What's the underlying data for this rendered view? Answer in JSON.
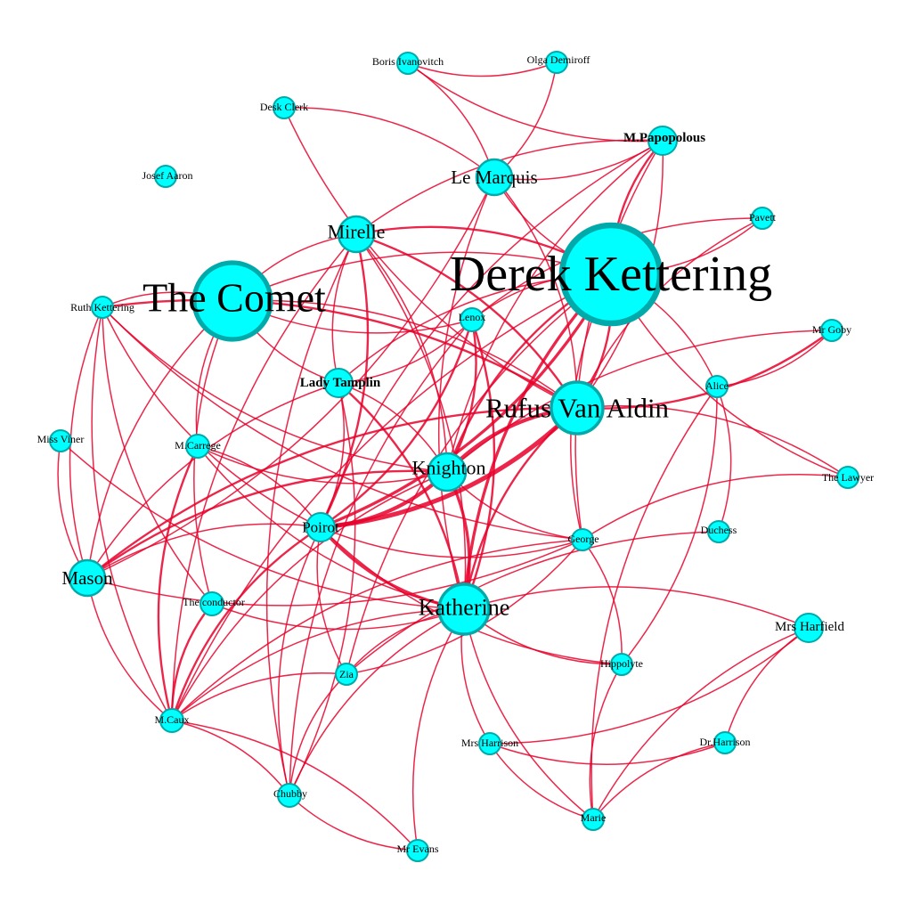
{
  "colors": {
    "node_fill": "#00ffff",
    "node_stroke": "#00aaaa",
    "edge": "#e8002a",
    "background": "#ffffff"
  },
  "nodes": [
    {
      "id": "derek",
      "label": "Derek Kettering",
      "weight": 10
    },
    {
      "id": "comet",
      "label": "The Comet",
      "weight": 8
    },
    {
      "id": "rufus",
      "label": "Rufus Van Aldin",
      "weight": 5
    },
    {
      "id": "katherine",
      "label": "Katherine",
      "weight": 4
    },
    {
      "id": "knighton",
      "label": "Knighton",
      "weight": 3
    },
    {
      "id": "mirelle",
      "label": "Mirelle",
      "weight": 3
    },
    {
      "id": "lemarquis",
      "label": "Le Marquis",
      "weight": 3
    },
    {
      "id": "mason",
      "label": "Mason",
      "weight": 3
    },
    {
      "id": "poirot",
      "label": "Poirot",
      "weight": 2
    },
    {
      "id": "tamplin",
      "label": "Lady Tamplin",
      "weight": 2
    },
    {
      "id": "papopolous",
      "label": "M.Papopolous",
      "weight": 2
    },
    {
      "id": "harfield",
      "label": "Mrs Harfield",
      "weight": 2
    },
    {
      "id": "lenox",
      "label": "Lenox",
      "weight": 1
    },
    {
      "id": "ruth",
      "label": "Ruth Kettering",
      "weight": 1
    },
    {
      "id": "carrege",
      "label": "M.Carrege",
      "weight": 1
    },
    {
      "id": "conductor",
      "label": "The conductor",
      "weight": 1
    },
    {
      "id": "caux",
      "label": "M.Caux",
      "weight": 1
    },
    {
      "id": "zia",
      "label": "Zia",
      "weight": 1
    },
    {
      "id": "chubby",
      "label": "Chubby",
      "weight": 1
    },
    {
      "id": "evans",
      "label": "Mr Evans",
      "weight": 1
    },
    {
      "id": "mrsharrison",
      "label": "Mrs Harrison",
      "weight": 1
    },
    {
      "id": "marie",
      "label": "Marie",
      "weight": 1
    },
    {
      "id": "drharrison",
      "label": "Dr.Harrison",
      "weight": 1
    },
    {
      "id": "hippolyte",
      "label": "Hippolyte",
      "weight": 1
    },
    {
      "id": "george",
      "label": "George",
      "weight": 1
    },
    {
      "id": "duchess",
      "label": "Duchess",
      "weight": 1
    },
    {
      "id": "lawyer",
      "label": "The Lawyer",
      "weight": 1
    },
    {
      "id": "alice",
      "label": "Alice",
      "weight": 1
    },
    {
      "id": "goby",
      "label": "Mr Goby",
      "weight": 1
    },
    {
      "id": "pavett",
      "label": "Pavett",
      "weight": 1
    },
    {
      "id": "boris",
      "label": "Boris Ivanovitch",
      "weight": 1
    },
    {
      "id": "olga",
      "label": "Olga Demiroff",
      "weight": 1
    },
    {
      "id": "deskclerk",
      "label": "Desk Clerk",
      "weight": 1
    },
    {
      "id": "josef",
      "label": "Josef Aaron",
      "weight": 1
    },
    {
      "id": "missviner",
      "label": "Miss Viner",
      "weight": 1
    }
  ],
  "edges": [
    {
      "source": "poirot",
      "target": "rufus",
      "weight": 5
    },
    {
      "source": "poirot",
      "target": "knighton",
      "weight": 4
    },
    {
      "source": "poirot",
      "target": "derek",
      "weight": 3
    },
    {
      "source": "poirot",
      "target": "katherine",
      "weight": 3
    },
    {
      "source": "poirot",
      "target": "mirelle",
      "weight": 2
    },
    {
      "source": "poirot",
      "target": "lenox",
      "weight": 2
    },
    {
      "source": "poirot",
      "target": "tamplin",
      "weight": 1
    },
    {
      "source": "poirot",
      "target": "mason",
      "weight": 1
    },
    {
      "source": "poirot",
      "target": "caux",
      "weight": 2
    },
    {
      "source": "poirot",
      "target": "carrege",
      "weight": 1
    },
    {
      "source": "poirot",
      "target": "george",
      "weight": 1
    },
    {
      "source": "poirot",
      "target": "chubby",
      "weight": 1
    },
    {
      "source": "poirot",
      "target": "zia",
      "weight": 1
    },
    {
      "source": "poirot",
      "target": "hippolyte",
      "weight": 1
    },
    {
      "source": "rufus",
      "target": "knighton",
      "weight": 4
    },
    {
      "source": "rufus",
      "target": "derek",
      "weight": 2
    },
    {
      "source": "rufus",
      "target": "katherine",
      "weight": 2
    },
    {
      "source": "rufus",
      "target": "mirelle",
      "weight": 2
    },
    {
      "source": "rufus",
      "target": "mason",
      "weight": 2
    },
    {
      "source": "rufus",
      "target": "ruth",
      "weight": 2
    },
    {
      "source": "rufus",
      "target": "comet",
      "weight": 1
    },
    {
      "source": "rufus",
      "target": "goby",
      "weight": 2
    },
    {
      "source": "rufus",
      "target": "papopolous",
      "weight": 1
    },
    {
      "source": "rufus",
      "target": "lemarquis",
      "weight": 1
    },
    {
      "source": "derek",
      "target": "katherine",
      "weight": 3
    },
    {
      "source": "derek",
      "target": "mirelle",
      "weight": 2
    },
    {
      "source": "derek",
      "target": "lenox",
      "weight": 1
    },
    {
      "source": "derek",
      "target": "comet",
      "weight": 1
    },
    {
      "source": "derek",
      "target": "tamplin",
      "weight": 1
    },
    {
      "source": "derek",
      "target": "knighton",
      "weight": 2
    },
    {
      "source": "derek",
      "target": "pavett",
      "weight": 1
    },
    {
      "source": "derek",
      "target": "lawyer",
      "weight": 1
    },
    {
      "source": "derek",
      "target": "george",
      "weight": 1
    },
    {
      "source": "derek",
      "target": "zia",
      "weight": 1
    },
    {
      "source": "derek",
      "target": "caux",
      "weight": 1
    },
    {
      "source": "katherine",
      "target": "knighton",
      "weight": 3
    },
    {
      "source": "katherine",
      "target": "tamplin",
      "weight": 2
    },
    {
      "source": "katherine",
      "target": "lenox",
      "weight": 2
    },
    {
      "source": "katherine",
      "target": "mirelle",
      "weight": 1
    },
    {
      "source": "katherine",
      "target": "zia",
      "weight": 1
    },
    {
      "source": "katherine",
      "target": "mrsharrison",
      "weight": 1
    },
    {
      "source": "katherine",
      "target": "marie",
      "weight": 1
    },
    {
      "source": "katherine",
      "target": "hippolyte",
      "weight": 1
    },
    {
      "source": "katherine",
      "target": "evans",
      "weight": 1
    },
    {
      "source": "katherine",
      "target": "caux",
      "weight": 1
    },
    {
      "source": "katherine",
      "target": "chubby",
      "weight": 1
    },
    {
      "source": "knighton",
      "target": "lenox",
      "weight": 2
    },
    {
      "source": "knighton",
      "target": "mirelle",
      "weight": 1
    },
    {
      "source": "knighton",
      "target": "tamplin",
      "weight": 1
    },
    {
      "source": "knighton",
      "target": "mason",
      "weight": 2
    },
    {
      "source": "knighton",
      "target": "caux",
      "weight": 1
    },
    {
      "source": "knighton",
      "target": "george",
      "weight": 1
    },
    {
      "source": "mirelle",
      "target": "comet",
      "weight": 1
    },
    {
      "source": "mirelle",
      "target": "tamplin",
      "weight": 1
    },
    {
      "source": "mirelle",
      "target": "caux",
      "weight": 1
    },
    {
      "source": "mirelle",
      "target": "chubby",
      "weight": 1
    },
    {
      "source": "comet",
      "target": "ruth",
      "weight": 1
    },
    {
      "source": "comet",
      "target": "mason",
      "weight": 1
    },
    {
      "source": "comet",
      "target": "carrege",
      "weight": 1
    },
    {
      "source": "comet",
      "target": "conductor",
      "weight": 1
    },
    {
      "source": "comet",
      "target": "tamplin",
      "weight": 1
    },
    {
      "source": "comet",
      "target": "lenox",
      "weight": 1
    },
    {
      "source": "ruth",
      "target": "mason",
      "weight": 1
    },
    {
      "source": "ruth",
      "target": "knighton",
      "weight": 1
    },
    {
      "source": "ruth",
      "target": "caux",
      "weight": 1
    },
    {
      "source": "ruth",
      "target": "poirot",
      "weight": 1
    },
    {
      "source": "ruth",
      "target": "conductor",
      "weight": 1
    },
    {
      "source": "ruth",
      "target": "george",
      "weight": 1
    },
    {
      "source": "carrege",
      "target": "caux",
      "weight": 2
    },
    {
      "source": "carrege",
      "target": "katherine",
      "weight": 1
    },
    {
      "source": "carrege",
      "target": "knighton",
      "weight": 1
    },
    {
      "source": "conductor",
      "target": "caux",
      "weight": 2
    },
    {
      "source": "conductor",
      "target": "katherine",
      "weight": 1
    },
    {
      "source": "mason",
      "target": "caux",
      "weight": 1
    },
    {
      "source": "mason",
      "target": "george",
      "weight": 1
    },
    {
      "source": "mason",
      "target": "lemarquis",
      "weight": 1
    },
    {
      "source": "zia",
      "target": "chubby",
      "weight": 1
    },
    {
      "source": "zia",
      "target": "caux",
      "weight": 1
    },
    {
      "source": "zia",
      "target": "george",
      "weight": 1
    },
    {
      "source": "chubby",
      "target": "evans",
      "weight": 1
    },
    {
      "source": "chubby",
      "target": "tamplin",
      "weight": 1
    },
    {
      "source": "chubby",
      "target": "caux",
      "weight": 1
    },
    {
      "source": "evans",
      "target": "caux",
      "weight": 1
    },
    {
      "source": "mrsharrison",
      "target": "drharrison",
      "weight": 1
    },
    {
      "source": "mrsharrison",
      "target": "marie",
      "weight": 1
    },
    {
      "source": "mrsharrison",
      "target": "harfield",
      "weight": 1
    },
    {
      "source": "harfield",
      "target": "marie",
      "weight": 1
    },
    {
      "source": "harfield",
      "target": "drharrison",
      "weight": 1
    },
    {
      "source": "harfield",
      "target": "katherine",
      "weight": 1
    },
    {
      "source": "hippolyte",
      "target": "marie",
      "weight": 1
    },
    {
      "source": "hippolyte",
      "target": "alice",
      "weight": 1
    },
    {
      "source": "hippolyte",
      "target": "george",
      "weight": 1
    },
    {
      "source": "duchess",
      "target": "zia",
      "weight": 1
    },
    {
      "source": "duchess",
      "target": "alice",
      "weight": 1
    },
    {
      "source": "alice",
      "target": "derek",
      "weight": 1
    },
    {
      "source": "alice",
      "target": "marie",
      "weight": 1
    },
    {
      "source": "alice",
      "target": "goby",
      "weight": 1
    },
    {
      "source": "lawyer",
      "target": "george",
      "weight": 1
    },
    {
      "source": "lawyer",
      "target": "rufus",
      "weight": 1
    },
    {
      "source": "goby",
      "target": "knighton",
      "weight": 1
    },
    {
      "source": "pavett",
      "target": "lenox",
      "weight": 1
    },
    {
      "source": "pavett",
      "target": "rufus",
      "weight": 1
    },
    {
      "source": "lemarquis",
      "target": "derek",
      "weight": 1
    },
    {
      "source": "lemarquis",
      "target": "boris",
      "weight": 1
    },
    {
      "source": "lemarquis",
      "target": "olga",
      "weight": 1
    },
    {
      "source": "lemarquis",
      "target": "papopolous",
      "weight": 1
    },
    {
      "source": "lemarquis",
      "target": "katherine",
      "weight": 1
    },
    {
      "source": "lemarquis",
      "target": "deskclerk",
      "weight": 1
    },
    {
      "source": "papopolous",
      "target": "derek",
      "weight": 2
    },
    {
      "source": "papopolous",
      "target": "knighton",
      "weight": 1
    },
    {
      "source": "papopolous",
      "target": "poirot",
      "weight": 1
    },
    {
      "source": "papopolous",
      "target": "mirelle",
      "weight": 1
    },
    {
      "source": "papopolous",
      "target": "george",
      "weight": 1
    },
    {
      "source": "boris",
      "target": "olga",
      "weight": 1
    },
    {
      "source": "boris",
      "target": "papopolous",
      "weight": 1
    },
    {
      "source": "deskclerk",
      "target": "rufus",
      "weight": 1
    },
    {
      "source": "tamplin",
      "target": "lenox",
      "weight": 1
    },
    {
      "source": "tamplin",
      "target": "mason",
      "weight": 1
    },
    {
      "source": "missviner",
      "target": "katherine",
      "weight": 1
    },
    {
      "source": "missviner",
      "target": "mason",
      "weight": 1
    },
    {
      "source": "lenox",
      "target": "chubby",
      "weight": 1
    },
    {
      "source": "george",
      "target": "caux",
      "weight": 1
    },
    {
      "source": "drharrison",
      "target": "marie",
      "weight": 1
    }
  ]
}
